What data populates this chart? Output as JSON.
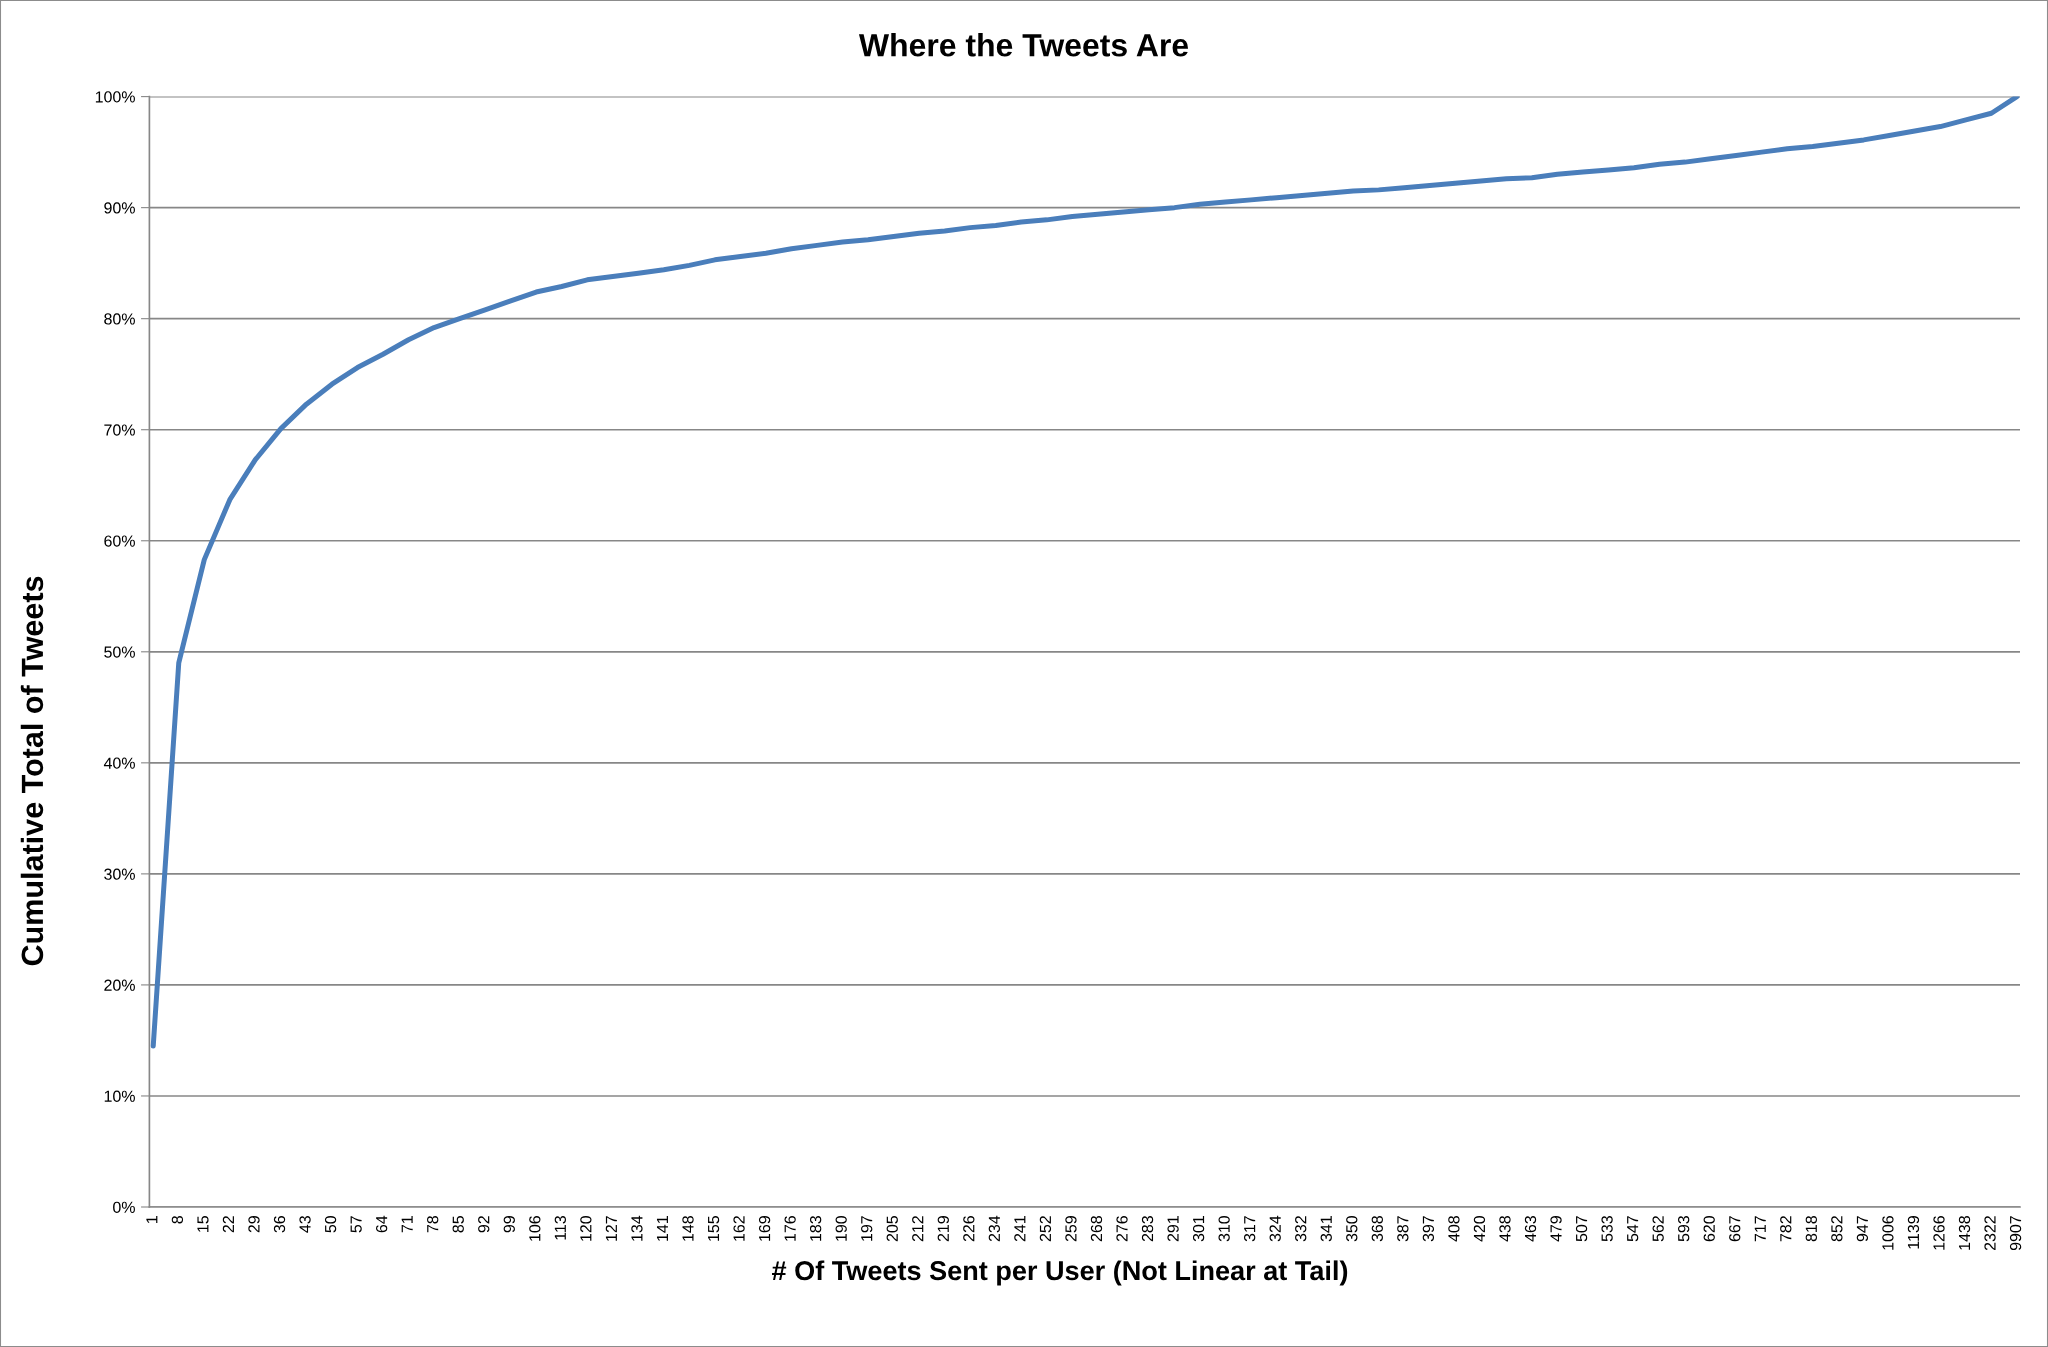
{
  "chart_data": {
    "type": "line",
    "title": "Where the Tweets Are",
    "xlabel": "# Of Tweets Sent per User (Not Linear at Tail)",
    "ylabel": "Cumulative Total of Tweets",
    "categories": [
      "1",
      "8",
      "15",
      "22",
      "29",
      "36",
      "43",
      "50",
      "57",
      "64",
      "71",
      "78",
      "85",
      "92",
      "99",
      "106",
      "113",
      "120",
      "127",
      "134",
      "141",
      "148",
      "155",
      "162",
      "169",
      "176",
      "183",
      "190",
      "197",
      "205",
      "212",
      "219",
      "226",
      "234",
      "241",
      "252",
      "259",
      "268",
      "276",
      "283",
      "291",
      "301",
      "310",
      "317",
      "324",
      "332",
      "341",
      "350",
      "368",
      "387",
      "397",
      "408",
      "420",
      "438",
      "463",
      "479",
      "507",
      "533",
      "547",
      "562",
      "593",
      "620",
      "667",
      "717",
      "782",
      "818",
      "852",
      "947",
      "1006",
      "1139",
      "1266",
      "1438",
      "2322",
      "9907"
    ],
    "series": [
      {
        "color": "#4a7ebb",
        "values": [
          14.5,
          49,
          58.3,
          63.7,
          67.3,
          70.1,
          72.3,
          74.1,
          75.6,
          76.8,
          78.1,
          79.2,
          80.0,
          80.8,
          81.6,
          82.4,
          82.9,
          83.5,
          83.8,
          84.1,
          84.4,
          84.8,
          85.3,
          85.6,
          85.9,
          86.3,
          86.6,
          86.9,
          87.1,
          87.4,
          87.7,
          87.9,
          88.2,
          88.4,
          88.7,
          88.9,
          89.2,
          89.4,
          89.6,
          89.8,
          90.0,
          90.3,
          90.5,
          90.7,
          90.9,
          91.1,
          91.3,
          91.5,
          91.6,
          91.8,
          92.0,
          92.2,
          92.4,
          92.6,
          92.7,
          93.0,
          93.2,
          93.4,
          93.6,
          93.9,
          94.1,
          94.4,
          94.7,
          95.0,
          95.3,
          95.5,
          95.8,
          96.1,
          96.5,
          96.9,
          97.3,
          97.9,
          98.5,
          100
        ]
      }
    ],
    "ylim": [
      0,
      100
    ],
    "yticks": [
      {
        "value": 0,
        "label": "0%"
      },
      {
        "value": 10,
        "label": "10%"
      },
      {
        "value": 20,
        "label": "20%"
      },
      {
        "value": 30,
        "label": "30%"
      },
      {
        "value": 40,
        "label": "40%"
      },
      {
        "value": 50,
        "label": "50%"
      },
      {
        "value": 60,
        "label": "60%"
      },
      {
        "value": 70,
        "label": "70%"
      },
      {
        "value": 80,
        "label": "80%"
      },
      {
        "value": 90,
        "label": "90%"
      },
      {
        "value": 100,
        "label": "100%"
      }
    ],
    "grid": "y",
    "line_style": "solid"
  }
}
